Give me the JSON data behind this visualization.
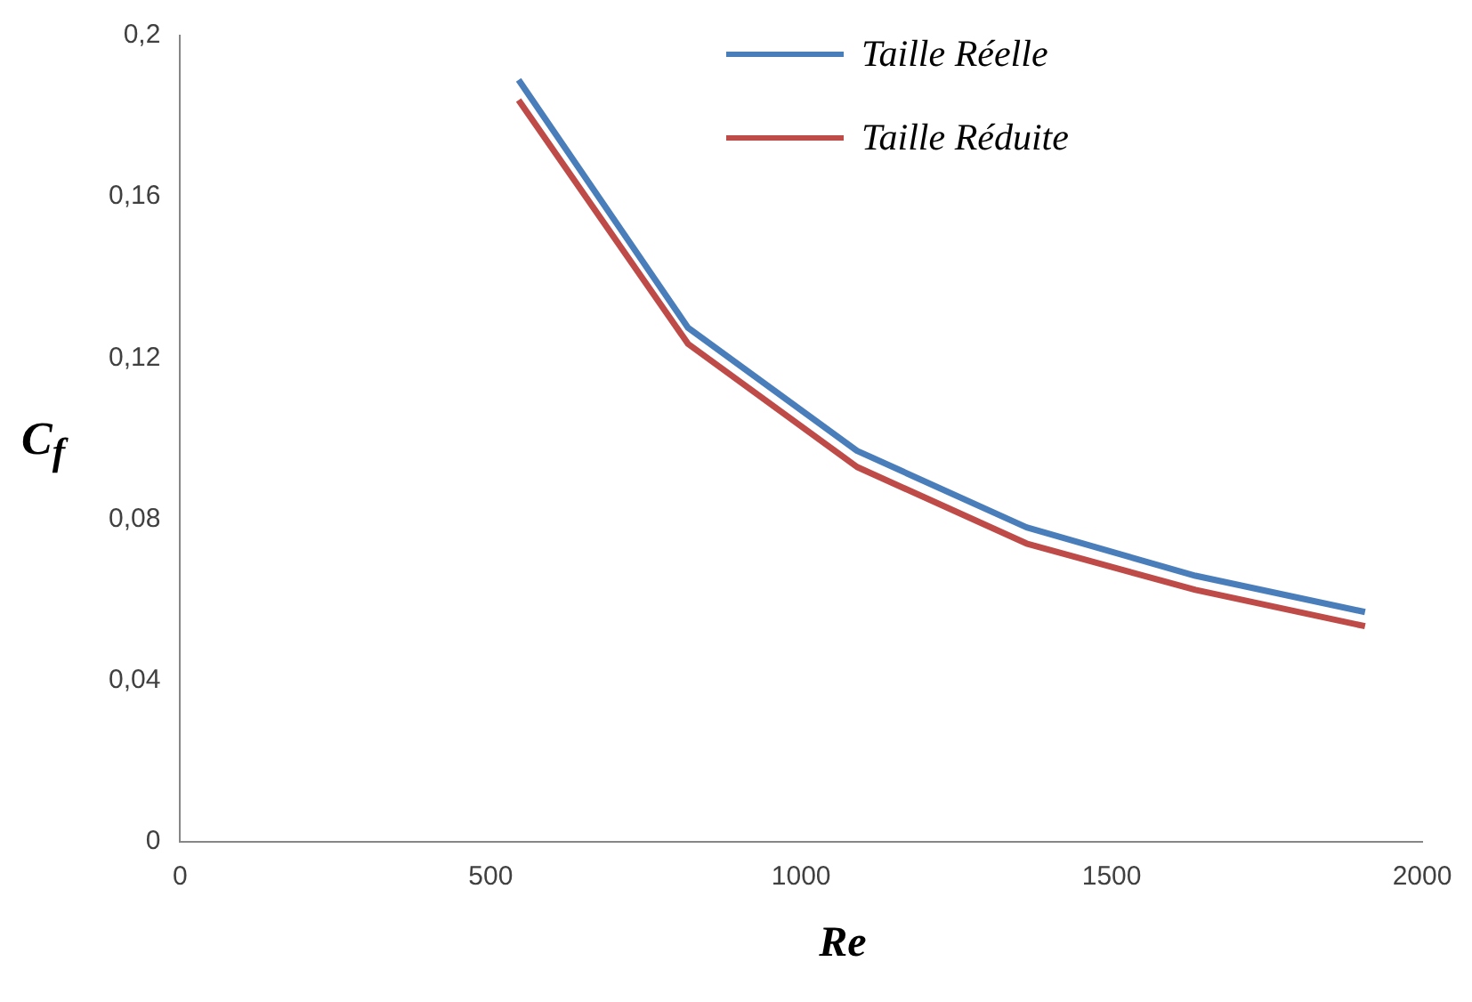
{
  "chart_data": {
    "type": "line",
    "xlabel": "Re",
    "ylabel": "C$_{f}$",
    "xlim": [
      0,
      2000
    ],
    "xticks": [
      0,
      500,
      1000,
      1500,
      2000
    ],
    "ylim": [
      0,
      0.2
    ],
    "yticks": [
      0,
      {
        "value": 0.04,
        "label": "0,04"
      },
      {
        "value": 0.08,
        "label": "0,08"
      },
      {
        "value": 0.12,
        "label": "0,12"
      },
      {
        "value": 0.16,
        "label": "0,16"
      },
      {
        "value": 0.2,
        "label": "0,2"
      }
    ],
    "x": [
      545,
      818,
      1090,
      1363,
      1635,
      1908
    ],
    "series": [
      {
        "name": "Taille Réelle",
        "color": "#4a7ebb",
        "values": [
          0.189,
          0.1275,
          0.097,
          0.078,
          0.066,
          0.057
        ]
      },
      {
        "name": "Taille Réduite",
        "color": "#be4b48",
        "values": [
          0.184,
          0.1235,
          0.093,
          0.074,
          0.0625,
          0.0535
        ]
      }
    ],
    "grid": false,
    "legend": "top right",
    "marker": "none",
    "line_style": "solid"
  }
}
